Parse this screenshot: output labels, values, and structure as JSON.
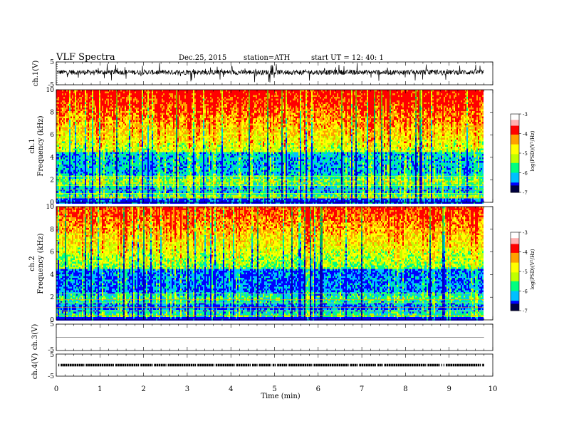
{
  "header": {
    "title": "VLF  Spectra",
    "date": "Dec.25, 2015",
    "station": "station=ATH",
    "start": "start  UT  =    12: 40: 1"
  },
  "panels": {
    "ch1_wave": {
      "ylabel": "ch.1(V)",
      "ticks": [
        "5",
        "-5"
      ]
    },
    "ch1_spec": {
      "ylabel": "ch.1",
      "ylabel2": "Frequency  (kHz)",
      "ticks": [
        "10",
        "8",
        "6",
        "4",
        "2",
        "0"
      ]
    },
    "ch2_spec": {
      "ylabel": "ch.2",
      "ylabel2": "Frequency  (kHz)",
      "ticks": [
        "10",
        "8",
        "6",
        "4",
        "2",
        "0"
      ]
    },
    "ch3_wave": {
      "ylabel": "ch.3(V)",
      "ticks": [
        "5"
      ]
    },
    "ch4_wave": {
      "ylabel": "ch.4(V)",
      "ticks": [
        "-5",
        "5",
        "-5"
      ]
    }
  },
  "colorbar": {
    "label": "log(PSD)(V²/Hz)",
    "ticks": [
      "-3",
      "-4",
      "-5",
      "-6",
      "-7"
    ],
    "colors": [
      "#000080",
      "#0000ff",
      "#00c0ff",
      "#00ff80",
      "#c0ff00",
      "#ffff00",
      "#ffa000",
      "#ff0000",
      "#ffffff"
    ]
  },
  "xaxis": {
    "label": "Time  (min)",
    "ticks": [
      "0",
      "1",
      "2",
      "3",
      "4",
      "5",
      "6",
      "7",
      "8",
      "9",
      "10"
    ]
  },
  "chart_data": {
    "type": "heatmap",
    "title": "VLF  Spectra",
    "xlabel": "Time  (min)",
    "x_range": [
      0,
      10
    ],
    "data_end_min": 9.8,
    "panels": [
      {
        "name": "ch.1(V)",
        "kind": "waveform",
        "ylim": [
          -5,
          5
        ],
        "level": 0.5
      },
      {
        "name": "ch.1",
        "kind": "spectrogram",
        "ylabel": "Frequency  (kHz)",
        "ylim": [
          0,
          10
        ]
      },
      {
        "name": "ch.2",
        "kind": "spectrogram",
        "ylabel": "Frequency  (kHz)",
        "ylim": [
          0,
          10
        ]
      },
      {
        "name": "ch.3(V)",
        "kind": "waveform",
        "ylim": [
          -5,
          5
        ],
        "level": 0
      },
      {
        "name": "ch.4(V)",
        "kind": "waveform",
        "ylim": [
          -5,
          5
        ],
        "level": 0
      }
    ],
    "colorbar": {
      "label": "log(PSD)(V²/Hz)",
      "range": [
        -7,
        -3
      ]
    }
  }
}
